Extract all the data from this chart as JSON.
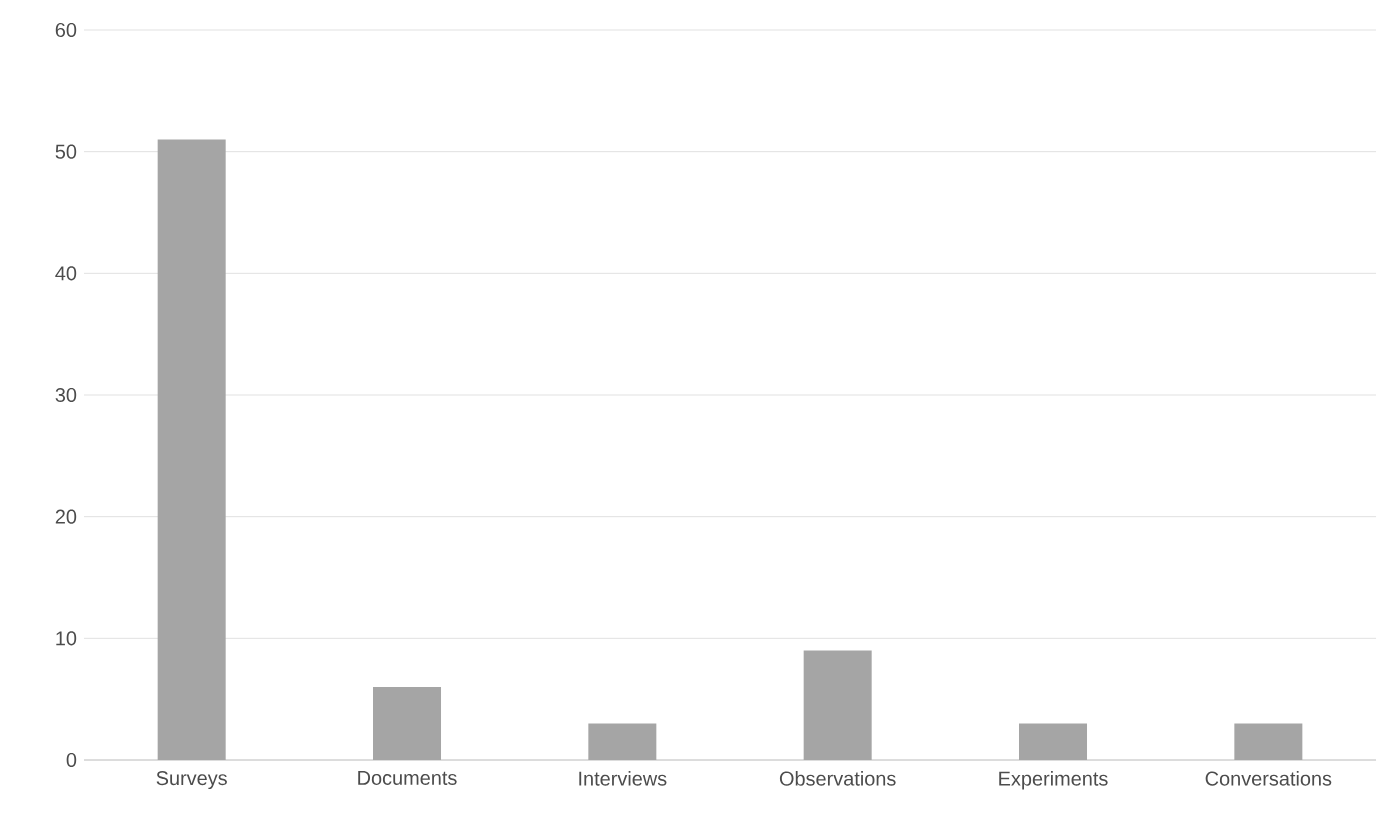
{
  "chart_data": {
    "type": "bar",
    "categories": [
      "Surveys",
      "Documents",
      "Interviews",
      "Observations",
      "Experiments",
      "Conversations"
    ],
    "values": [
      51,
      6,
      3,
      9,
      3,
      3
    ],
    "color": "#a5a5a5",
    "ylim": [
      0,
      60
    ],
    "yticks": [
      0,
      10,
      20,
      30,
      40,
      50,
      60
    ],
    "grid": "y"
  }
}
